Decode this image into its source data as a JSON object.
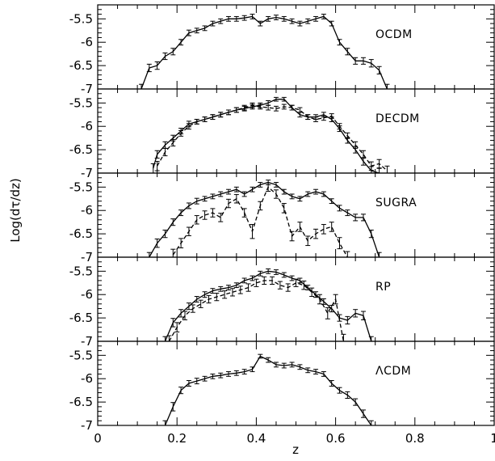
{
  "chart_data": {
    "type": "line",
    "xlabel": "z",
    "ylabel": "Log(dτ/dz)",
    "xlim": [
      0,
      1
    ],
    "ylim": [
      -7,
      -5.2
    ],
    "xticks": [
      0,
      0.2,
      0.4,
      0.6,
      0.8,
      1
    ],
    "xtick_labels": [
      "0",
      "0.2",
      "0.4",
      "0.6",
      "0.8",
      "1"
    ],
    "yticks": [
      -7,
      -6.5,
      -6,
      -5.5
    ],
    "ytick_labels": [
      "-7",
      "-6.5",
      "-6",
      "-5.5"
    ],
    "grid": false,
    "panels": [
      {
        "label": "OCDM",
        "series": [
          {
            "style": "solid",
            "x": [
              0.11,
              0.13,
              0.15,
              0.17,
              0.19,
              0.21,
              0.23,
              0.25,
              0.27,
              0.29,
              0.31,
              0.33,
              0.35,
              0.37,
              0.39,
              0.41,
              0.43,
              0.45,
              0.47,
              0.49,
              0.51,
              0.53,
              0.55,
              0.57,
              0.59,
              0.61,
              0.63,
              0.65,
              0.67,
              0.69,
              0.71,
              0.73
            ],
            "y": [
              -7.0,
              -6.55,
              -6.5,
              -6.3,
              -6.2,
              -6.0,
              -5.8,
              -5.75,
              -5.7,
              -5.6,
              -5.55,
              -5.5,
              -5.5,
              -5.48,
              -5.45,
              -5.6,
              -5.5,
              -5.47,
              -5.5,
              -5.55,
              -5.6,
              -5.55,
              -5.5,
              -5.45,
              -5.6,
              -6.0,
              -6.2,
              -6.4,
              -6.4,
              -6.45,
              -6.6,
              -7.0
            ],
            "err": [
              0.1,
              0.08,
              0.08,
              0.07,
              0.07,
              0.06,
              0.06,
              0.05,
              0.05,
              0.05,
              0.05,
              0.05,
              0.05,
              0.05,
              0.05,
              0.05,
              0.05,
              0.05,
              0.05,
              0.05,
              0.05,
              0.05,
              0.05,
              0.05,
              0.05,
              0.06,
              0.07,
              0.07,
              0.07,
              0.08,
              0.08,
              0.1
            ]
          }
        ]
      },
      {
        "label": "DECDM",
        "series": [
          {
            "style": "solid",
            "x": [
              0.14,
              0.15,
              0.17,
              0.19,
              0.21,
              0.23,
              0.25,
              0.27,
              0.29,
              0.31,
              0.33,
              0.35,
              0.37,
              0.39,
              0.41,
              0.43,
              0.45,
              0.47,
              0.49,
              0.51,
              0.53,
              0.55,
              0.57,
              0.59,
              0.61,
              0.63,
              0.65,
              0.67,
              0.69,
              0.71
            ],
            "y": [
              -6.9,
              -6.6,
              -6.4,
              -6.25,
              -6.1,
              -5.95,
              -5.9,
              -5.85,
              -5.8,
              -5.75,
              -5.7,
              -5.65,
              -5.62,
              -5.58,
              -5.55,
              -5.5,
              -5.42,
              -5.42,
              -5.6,
              -5.75,
              -5.8,
              -5.8,
              -5.75,
              -5.85,
              -6.05,
              -6.3,
              -6.5,
              -6.75,
              -6.95,
              -7.0
            ],
            "err": [
              0.1,
              0.08,
              0.07,
              0.06,
              0.06,
              0.06,
              0.05,
              0.05,
              0.05,
              0.05,
              0.05,
              0.05,
              0.05,
              0.05,
              0.05,
              0.05,
              0.04,
              0.04,
              0.05,
              0.05,
              0.05,
              0.05,
              0.05,
              0.05,
              0.06,
              0.06,
              0.07,
              0.08,
              0.09,
              0.1
            ]
          },
          {
            "style": "dashed",
            "x": [
              0.15,
              0.17,
              0.19,
              0.21,
              0.23,
              0.25,
              0.27,
              0.29,
              0.31,
              0.33,
              0.35,
              0.37,
              0.39,
              0.41,
              0.43,
              0.45,
              0.47,
              0.49,
              0.51,
              0.53,
              0.55,
              0.57,
              0.59,
              0.61,
              0.63,
              0.65,
              0.67,
              0.69,
              0.71,
              0.73
            ],
            "y": [
              -6.85,
              -6.55,
              -6.35,
              -6.15,
              -6.0,
              -5.9,
              -5.85,
              -5.8,
              -5.75,
              -5.7,
              -5.65,
              -5.6,
              -5.55,
              -5.58,
              -5.6,
              -5.62,
              -5.58,
              -5.6,
              -5.65,
              -5.8,
              -5.85,
              -5.82,
              -5.78,
              -6.0,
              -6.2,
              -6.4,
              -6.6,
              -6.85,
              -6.8,
              -6.95
            ],
            "err": [
              0.1,
              0.08,
              0.07,
              0.06,
              0.06,
              0.05,
              0.05,
              0.05,
              0.05,
              0.05,
              0.05,
              0.05,
              0.05,
              0.05,
              0.05,
              0.05,
              0.05,
              0.05,
              0.05,
              0.05,
              0.05,
              0.05,
              0.05,
              0.06,
              0.06,
              0.07,
              0.08,
              0.09,
              0.09,
              0.1
            ]
          }
        ]
      },
      {
        "label": "SUGRA",
        "series": [
          {
            "style": "solid",
            "x": [
              0.13,
              0.15,
              0.17,
              0.19,
              0.21,
              0.23,
              0.25,
              0.27,
              0.29,
              0.31,
              0.33,
              0.35,
              0.37,
              0.39,
              0.41,
              0.43,
              0.45,
              0.47,
              0.49,
              0.51,
              0.53,
              0.55,
              0.57,
              0.59,
              0.61,
              0.63,
              0.65,
              0.67,
              0.69,
              0.71
            ],
            "y": [
              -7.0,
              -6.7,
              -6.5,
              -6.25,
              -6.05,
              -5.9,
              -5.8,
              -5.75,
              -5.7,
              -5.65,
              -5.6,
              -5.55,
              -5.65,
              -5.55,
              -5.45,
              -5.4,
              -5.45,
              -5.6,
              -5.7,
              -5.75,
              -5.65,
              -5.6,
              -5.65,
              -5.8,
              -5.95,
              -6.05,
              -6.15,
              -6.15,
              -6.5,
              -7.0
            ],
            "err": [
              0.1,
              0.09,
              0.08,
              0.07,
              0.06,
              0.06,
              0.06,
              0.05,
              0.05,
              0.05,
              0.05,
              0.05,
              0.05,
              0.05,
              0.05,
              0.05,
              0.05,
              0.05,
              0.05,
              0.05,
              0.05,
              0.05,
              0.05,
              0.05,
              0.06,
              0.06,
              0.07,
              0.07,
              0.08,
              0.1
            ]
          },
          {
            "style": "dashed",
            "x": [
              0.19,
              0.21,
              0.23,
              0.25,
              0.27,
              0.29,
              0.31,
              0.33,
              0.35,
              0.37,
              0.39,
              0.41,
              0.43,
              0.45,
              0.47,
              0.49,
              0.51,
              0.53,
              0.55,
              0.57,
              0.59,
              0.61,
              0.63
            ],
            "y": [
              -6.95,
              -6.7,
              -6.45,
              -6.2,
              -6.1,
              -6.05,
              -6.15,
              -5.85,
              -5.75,
              -6.05,
              -6.45,
              -5.9,
              -5.5,
              -5.65,
              -5.95,
              -6.55,
              -6.35,
              -6.65,
              -6.5,
              -6.4,
              -6.35,
              -6.7,
              -7.0
            ],
            "err": [
              0.12,
              0.1,
              0.09,
              0.09,
              0.09,
              0.09,
              0.09,
              0.09,
              0.09,
              0.09,
              0.15,
              0.09,
              0.09,
              0.09,
              0.1,
              0.1,
              0.1,
              0.1,
              0.1,
              0.1,
              0.1,
              0.12,
              0.12
            ]
          }
        ]
      },
      {
        "label": "RP",
        "series": [
          {
            "style": "solid",
            "x": [
              0.17,
              0.19,
              0.21,
              0.23,
              0.25,
              0.27,
              0.29,
              0.31,
              0.33,
              0.35,
              0.37,
              0.39,
              0.41,
              0.43,
              0.45,
              0.47,
              0.49,
              0.51,
              0.53,
              0.55,
              0.57,
              0.59,
              0.61,
              0.63,
              0.65,
              0.67,
              0.69
            ],
            "y": [
              -7.0,
              -6.6,
              -6.4,
              -6.25,
              -6.1,
              -6.0,
              -5.92,
              -5.88,
              -5.85,
              -5.8,
              -5.7,
              -5.65,
              -5.55,
              -5.5,
              -5.52,
              -5.58,
              -5.65,
              -5.7,
              -5.85,
              -6.0,
              -6.15,
              -6.3,
              -6.5,
              -6.55,
              -6.4,
              -6.45,
              -7.0
            ],
            "err": [
              0.1,
              0.09,
              0.08,
              0.07,
              0.06,
              0.06,
              0.05,
              0.05,
              0.05,
              0.05,
              0.05,
              0.05,
              0.05,
              0.05,
              0.05,
              0.05,
              0.05,
              0.05,
              0.05,
              0.06,
              0.06,
              0.07,
              0.07,
              0.08,
              0.08,
              0.09,
              0.1
            ]
          },
          {
            "style": "dashed",
            "x": [
              0.18,
              0.2,
              0.22,
              0.24,
              0.26,
              0.28,
              0.3,
              0.32,
              0.34,
              0.36,
              0.38,
              0.4,
              0.42,
              0.44,
              0.46,
              0.48,
              0.5,
              0.52,
              0.54,
              0.56,
              0.58,
              0.6,
              0.62
            ],
            "y": [
              -7.0,
              -6.7,
              -6.45,
              -6.3,
              -6.2,
              -6.1,
              -6.05,
              -6.0,
              -5.95,
              -5.9,
              -5.85,
              -5.75,
              -5.7,
              -5.7,
              -5.8,
              -5.85,
              -5.75,
              -5.8,
              -5.95,
              -6.1,
              -6.4,
              -6.1,
              -7.0
            ],
            "err": [
              0.12,
              0.1,
              0.09,
              0.08,
              0.08,
              0.08,
              0.08,
              0.08,
              0.08,
              0.08,
              0.08,
              0.08,
              0.08,
              0.08,
              0.08,
              0.08,
              0.08,
              0.09,
              0.09,
              0.1,
              0.12,
              0.1,
              0.15
            ]
          }
        ]
      },
      {
        "label": "ΛCDM",
        "series": [
          {
            "style": "solid",
            "x": [
              0.17,
              0.19,
              0.21,
              0.23,
              0.25,
              0.27,
              0.29,
              0.31,
              0.33,
              0.35,
              0.37,
              0.39,
              0.41,
              0.43,
              0.45,
              0.47,
              0.49,
              0.51,
              0.53,
              0.55,
              0.57,
              0.59,
              0.61,
              0.63,
              0.65,
              0.67,
              0.69
            ],
            "y": [
              -7.0,
              -6.6,
              -6.25,
              -6.1,
              -6.05,
              -6.0,
              -5.95,
              -5.93,
              -5.9,
              -5.88,
              -5.85,
              -5.8,
              -5.52,
              -5.6,
              -5.7,
              -5.72,
              -5.7,
              -5.75,
              -5.82,
              -5.85,
              -5.9,
              -6.1,
              -6.25,
              -6.35,
              -6.5,
              -6.75,
              -7.0
            ],
            "err": [
              0.1,
              0.09,
              0.07,
              0.06,
              0.06,
              0.05,
              0.05,
              0.05,
              0.05,
              0.05,
              0.05,
              0.05,
              0.04,
              0.05,
              0.05,
              0.05,
              0.05,
              0.05,
              0.05,
              0.05,
              0.05,
              0.06,
              0.06,
              0.07,
              0.07,
              0.08,
              0.1
            ]
          }
        ]
      }
    ]
  }
}
